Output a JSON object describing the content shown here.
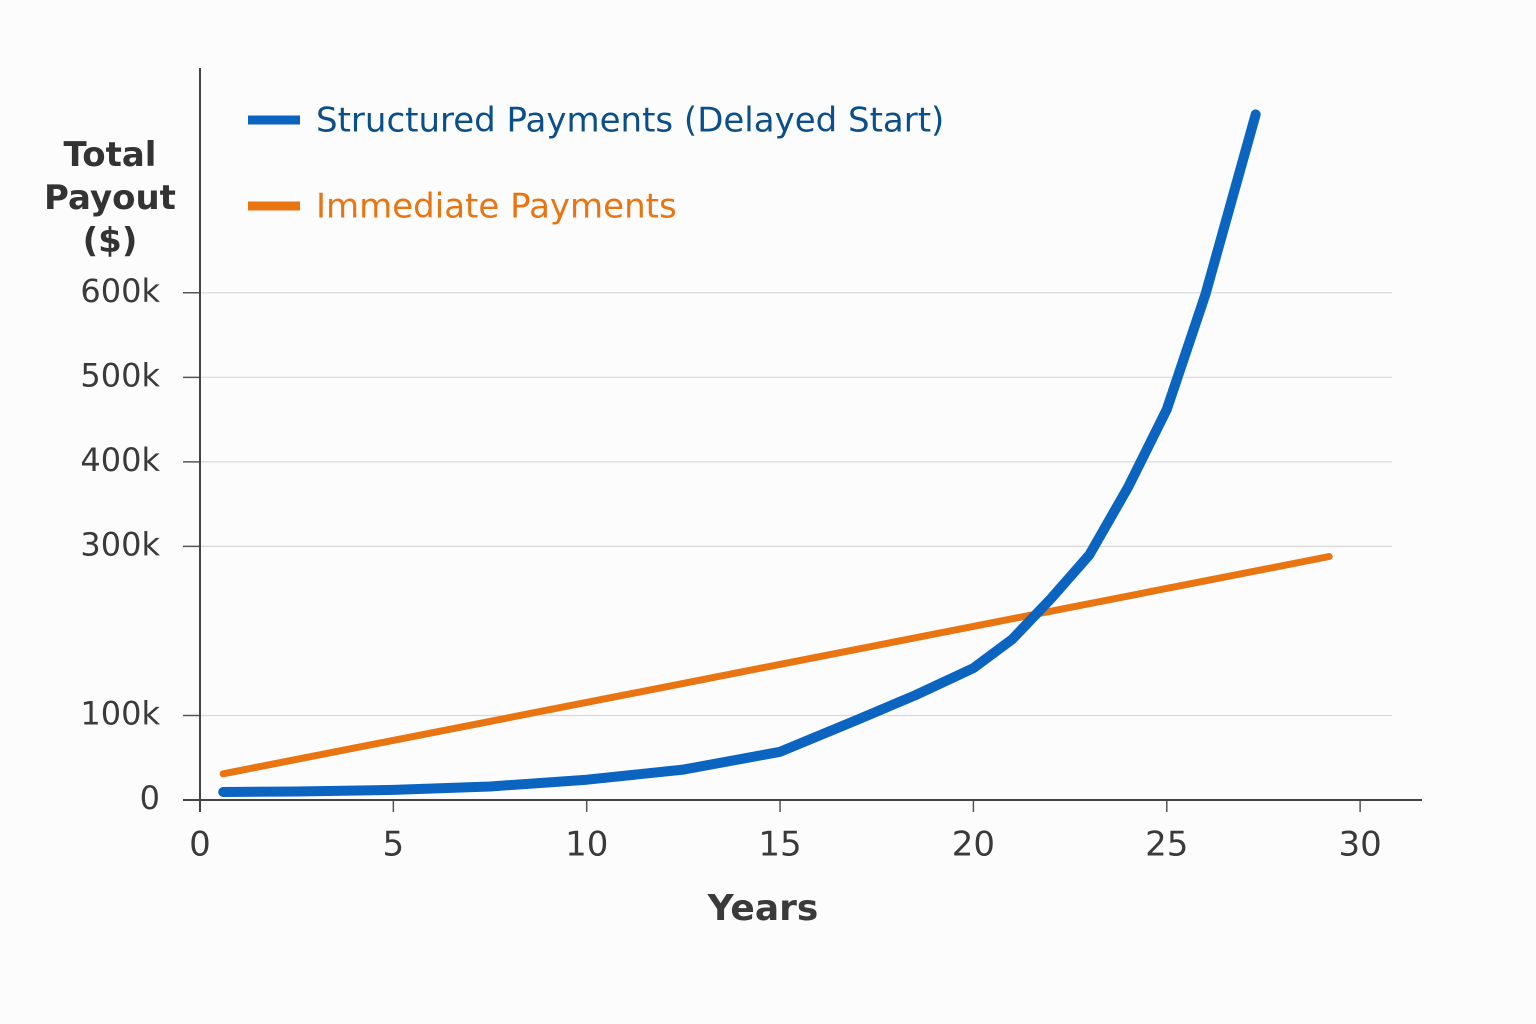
{
  "chart_data": {
    "type": "line",
    "x_label": "Years",
    "y_label": "Total Payout ($)",
    "series": [
      {
        "name": "Structured Payments (Delayed Start)",
        "color": "#0a64c0",
        "text_color": "#0b4f8a",
        "x": [
          0.6,
          2.5,
          5,
          7.5,
          10,
          12.5,
          15,
          17,
          18.5,
          20,
          21,
          22,
          23,
          24,
          25,
          26,
          27.3
        ],
        "values": [
          9500,
          10000,
          12000,
          16000,
          24000,
          36000,
          57000,
          95000,
          124000,
          156000,
          190000,
          238000,
          290000,
          370000,
          462000,
          598000,
          811000
        ]
      },
      {
        "name": "Immediate Payments",
        "color": "#e87511",
        "text_color": "#e87511",
        "x": [
          0.6,
          29.2
        ],
        "values": [
          31000,
          288000
        ]
      }
    ],
    "xlim": [
      0,
      31.6
    ],
    "xticks": [
      0,
      5,
      10,
      15,
      20,
      25,
      30
    ],
    "ylim": [
      0,
      860000
    ],
    "yticks": [
      0,
      {
        "value": 100000,
        "label": "100k"
      },
      {
        "value": 300000,
        "label": "300k"
      },
      {
        "value": 400000,
        "label": "400k"
      },
      {
        "value": 500000,
        "label": "500k"
      },
      {
        "value": 600000,
        "label": "600k"
      }
    ],
    "grid": true,
    "legend": "top-left"
  }
}
